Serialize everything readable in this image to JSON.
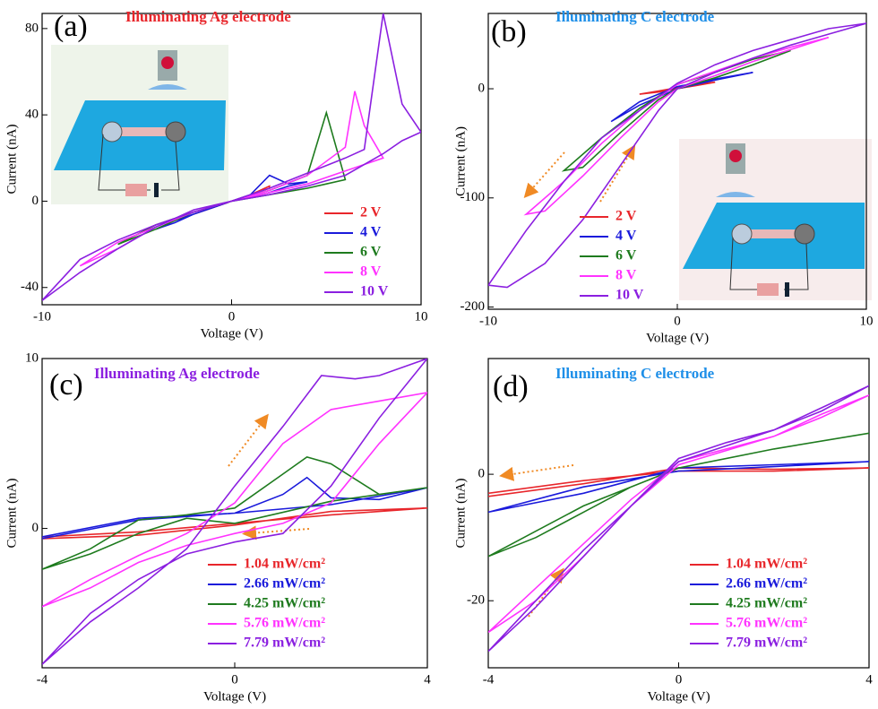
{
  "chart_data": [
    {
      "type": "line",
      "label": "(a)",
      "annotation": "Illuminating Ag electrode",
      "annotation_color": "#e8262b",
      "x_label": "Voltage (V)",
      "y_label": "Current (nA)",
      "xlim": [
        -10,
        10
      ],
      "xticks": [
        -10,
        0,
        10
      ],
      "ylim": [
        -48,
        87
      ],
      "yticks": [
        -40,
        0,
        40,
        80
      ],
      "series": [
        {
          "name": "2 V",
          "color": "#e8262b",
          "x": [
            0,
            1,
            2,
            2,
            1,
            0,
            -1,
            -2,
            -1,
            0
          ],
          "values": [
            0,
            3,
            6,
            7,
            3,
            0,
            -3,
            -6,
            -3,
            0
          ]
        },
        {
          "name": "4 V",
          "color": "#1a1adb",
          "x": [
            0,
            1,
            2,
            3,
            4,
            3,
            2,
            1,
            0,
            -1,
            -2,
            -3,
            -4,
            -3,
            -2,
            -1,
            0
          ],
          "values": [
            0,
            3,
            12,
            8,
            9,
            7,
            4,
            2,
            0,
            -3,
            -6,
            -9,
            -13,
            -10,
            -6,
            -3,
            0
          ]
        },
        {
          "name": "6 V",
          "color": "#1e7b1e",
          "x": [
            0,
            2,
            4,
            5,
            6,
            5,
            4,
            2,
            0,
            -2,
            -4,
            -6,
            -4,
            -2,
            0
          ],
          "values": [
            0,
            5,
            12,
            41,
            10,
            8,
            6,
            3,
            0,
            -5,
            -11,
            -20,
            -13,
            -5,
            0
          ]
        },
        {
          "name": "8 V",
          "color": "#ff33ff",
          "x": [
            0,
            2,
            4,
            6,
            6.5,
            7,
            8,
            7,
            6,
            4,
            2,
            0,
            -2,
            -4,
            -6,
            -8,
            -6,
            -4,
            -2,
            0
          ],
          "values": [
            0,
            5,
            12,
            25,
            51,
            35,
            20,
            17,
            14,
            8,
            4,
            0,
            -5,
            -12,
            -19,
            -30,
            -22,
            -12,
            -5,
            0
          ]
        },
        {
          "name": "10 V",
          "color": "#8b1fe0",
          "x": [
            0,
            2,
            4,
            6,
            7,
            8,
            9,
            10,
            9,
            8,
            6,
            4,
            2,
            0,
            -2,
            -4,
            -6,
            -8,
            -10,
            -8,
            -6,
            -4,
            -2,
            0
          ],
          "values": [
            0,
            6,
            13,
            20,
            24,
            87,
            45,
            32,
            28,
            22,
            12,
            7,
            3,
            0,
            -5,
            -11,
            -18,
            -27,
            -46,
            -33,
            -22,
            -12,
            -4,
            0
          ]
        }
      ]
    },
    {
      "type": "line",
      "label": "(b)",
      "annotation": "Illuminating C electrode",
      "annotation_color": "#1e8fe8",
      "x_label": "Voltage (V)",
      "y_label": "Current (nA)",
      "xlim": [
        -10,
        10
      ],
      "xticks": [
        -10,
        0,
        10
      ],
      "ylim": [
        -202,
        69
      ],
      "yticks": [
        -200,
        -100,
        0
      ],
      "series": [
        {
          "name": "2 V",
          "color": "#e8262b",
          "x": [
            0,
            1,
            2,
            1,
            0,
            -1,
            -2,
            -1,
            0
          ],
          "values": [
            0,
            3,
            6,
            4,
            1,
            -2,
            -5,
            -3,
            0
          ]
        },
        {
          "name": "4 V",
          "color": "#1a1adb",
          "x": [
            0,
            2,
            4,
            2,
            0,
            -2,
            -3.5,
            -2,
            0
          ],
          "values": [
            0,
            8,
            15,
            9,
            2,
            -12,
            -30,
            -15,
            0
          ]
        },
        {
          "name": "6 V",
          "color": "#1e7b1e",
          "x": [
            0,
            2,
            4,
            6,
            4,
            2,
            0,
            -2,
            -4,
            -6,
            -5,
            -3,
            -1,
            0
          ],
          "values": [
            0,
            10,
            22,
            35,
            27,
            15,
            4,
            -18,
            -45,
            -75,
            -72,
            -40,
            -10,
            0
          ]
        },
        {
          "name": "8 V",
          "color": "#ff33ff",
          "x": [
            0,
            2,
            4,
            6,
            8,
            6,
            4,
            2,
            0,
            -2,
            -4,
            -6,
            -8,
            -7,
            -5,
            -3,
            -1,
            0
          ],
          "values": [
            0,
            12,
            25,
            36,
            47,
            38,
            28,
            16,
            4,
            -20,
            -50,
            -85,
            -115,
            -112,
            -80,
            -45,
            -12,
            0
          ]
        },
        {
          "name": "10 V",
          "color": "#8b1fe0",
          "x": [
            0,
            2,
            4,
            6,
            8,
            10,
            8,
            6,
            4,
            2,
            0,
            -2,
            -4,
            -6,
            -8,
            -10,
            -9,
            -7,
            -5,
            -3,
            -1,
            0
          ],
          "values": [
            0,
            15,
            28,
            40,
            50,
            60,
            55,
            45,
            35,
            22,
            5,
            -20,
            -45,
            -85,
            -130,
            -180,
            -182,
            -160,
            -120,
            -70,
            -20,
            0
          ]
        }
      ]
    },
    {
      "type": "line",
      "label": "(c)",
      "annotation": "Illuminating Ag electrode",
      "annotation_color": "#8b1fe0",
      "x_label": "Voltage (V)",
      "y_label": "Current (nA)",
      "xlim": [
        -4,
        4
      ],
      "xticks": [
        -4,
        0,
        4
      ],
      "ylim": [
        -8.2,
        10
      ],
      "yticks": [
        0,
        10
      ],
      "series": [
        {
          "name": "1.04 mW/cm²",
          "color": "#e8262b",
          "x": [
            -4,
            -2,
            0,
            2,
            4,
            2,
            0,
            -2,
            -4
          ],
          "values": [
            -0.5,
            -0.2,
            0.3,
            0.8,
            1.2,
            1.0,
            0.2,
            -0.4,
            -0.6
          ]
        },
        {
          "name": "2.66 mW/cm²",
          "color": "#1a1adb",
          "x": [
            -4,
            -2,
            0,
            1,
            1.5,
            2,
            3,
            4,
            2,
            0,
            -2,
            -4
          ],
          "values": [
            -0.6,
            0.5,
            0.9,
            2,
            3,
            1.8,
            1.7,
            2.4,
            1.4,
            0.9,
            0.6,
            -0.5
          ]
        },
        {
          "name": "4.25 mW/cm²",
          "color": "#1e7b1e",
          "x": [
            -4,
            -3,
            -2,
            -1,
            0,
            1,
            1.5,
            2,
            3,
            4,
            2,
            0,
            -1,
            -2,
            -3,
            -4
          ],
          "values": [
            -2.4,
            -1.2,
            0.5,
            0.8,
            1.2,
            3.2,
            4.2,
            3.8,
            2.0,
            2.4,
            1.6,
            0.3,
            0.6,
            -0.3,
            -1.5,
            -2.4
          ]
        },
        {
          "name": "5.76 mW/cm²",
          "color": "#ff33ff",
          "x": [
            -4,
            -3,
            -2,
            -1,
            0,
            1,
            2,
            3,
            4,
            3,
            2,
            1,
            0,
            -1,
            -2,
            -3,
            -4
          ],
          "values": [
            -4.6,
            -3,
            -1.6,
            -0.3,
            1.5,
            5,
            7,
            7.5,
            8,
            5,
            1.5,
            0.3,
            -0.3,
            -1,
            -2,
            -3.5,
            -4.6
          ]
        },
        {
          "name": "7.79 mW/cm²",
          "color": "#8b1fe0",
          "x": [
            -4,
            -3,
            -2,
            -1,
            0,
            1,
            1.8,
            2.5,
            3,
            4,
            3,
            2,
            1,
            0,
            -1,
            -2,
            -3,
            -4
          ],
          "values": [
            -8,
            -5.5,
            -3.5,
            -1.2,
            2.5,
            6,
            9,
            8.8,
            9,
            10,
            6.5,
            2.5,
            -0.3,
            -0.8,
            -1.5,
            -3,
            -5,
            -8
          ]
        }
      ]
    },
    {
      "type": "line",
      "label": "(d)",
      "annotation": "Illuminating C electrode",
      "annotation_color": "#1e8fe8",
      "x_label": "Voltage (V)",
      "y_label": "Current (nA)",
      "xlim": [
        -4,
        4
      ],
      "xticks": [
        -4,
        0,
        4
      ],
      "ylim": [
        -30.6,
        18.3
      ],
      "yticks": [
        -20,
        0
      ],
      "series": [
        {
          "name": "1.04 mW/cm²",
          "color": "#e8262b",
          "x": [
            -4,
            -2,
            0,
            2,
            4,
            2,
            0,
            -2,
            -4
          ],
          "values": [
            -3.5,
            -1.5,
            1,
            0.8,
            1,
            0.5,
            0.5,
            -1,
            -3
          ]
        },
        {
          "name": "2.66 mW/cm²",
          "color": "#1a1adb",
          "x": [
            -4,
            -2,
            -1,
            0,
            2,
            4,
            2,
            0,
            -2,
            -4
          ],
          "values": [
            -6,
            -3,
            -1,
            1,
            1.5,
            2,
            1.2,
            0.5,
            -2,
            -6
          ]
        },
        {
          "name": "4.25 mW/cm²",
          "color": "#1e7b1e",
          "x": [
            -4,
            -3,
            -2,
            -1,
            0,
            2,
            4,
            2,
            0,
            -1,
            -2,
            -3,
            -4
          ],
          "values": [
            -13,
            -9,
            -5,
            -2,
            1,
            4,
            6.5,
            4,
            1,
            -2,
            -6,
            -10,
            -13
          ]
        },
        {
          "name": "5.76 mW/cm²",
          "color": "#ff33ff",
          "x": [
            -4,
            -3,
            -2,
            -1,
            0,
            1,
            2,
            3,
            4,
            3,
            2,
            0,
            -1,
            -2,
            -3,
            -4
          ],
          "values": [
            -25,
            -18,
            -11,
            -4,
            2,
            4,
            6,
            9,
            12.5,
            9.5,
            6,
            1.5,
            -5,
            -13,
            -20,
            -25
          ]
        },
        {
          "name": "7.79 mW/cm²",
          "color": "#8b1fe0",
          "x": [
            -4,
            -3,
            -2,
            -1,
            0,
            1,
            2,
            3,
            4,
            3,
            2,
            0,
            -1,
            -2,
            -3,
            -4
          ],
          "values": [
            -28,
            -20,
            -12,
            -5,
            2.5,
            5,
            7,
            10,
            14,
            10.5,
            7,
            2,
            -5,
            -13,
            -21,
            -28
          ]
        }
      ]
    }
  ]
}
